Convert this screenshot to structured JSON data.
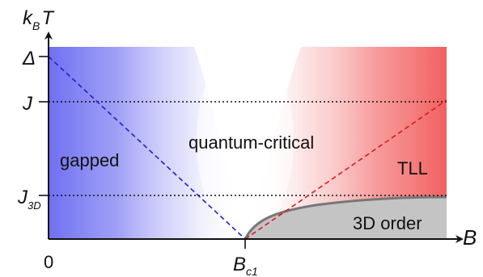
{
  "axes": {
    "y_label": {
      "main": "k",
      "sub": "B",
      "main2": "T"
    },
    "x_label": "B",
    "y_ticks": [
      {
        "main": "Δ",
        "sub": ""
      },
      {
        "main": "J",
        "sub": ""
      },
      {
        "main": "J",
        "sub": "3D"
      }
    ],
    "x_ticks": [
      {
        "main": "0",
        "sub": ""
      },
      {
        "main": "B",
        "sub": "c1"
      }
    ]
  },
  "regions": {
    "gapped": "gapped",
    "quantum_critical": "quantum-critical",
    "tll": "TLL",
    "order_3d": "3D order"
  },
  "colors": {
    "gapped_blue": "#6b6bf0",
    "tll_red": "#f26868",
    "order_gray": "#c4c4c4",
    "boundary_gray": "#777777",
    "blue_dash": "#2020cc",
    "red_dash": "#e01818"
  }
}
